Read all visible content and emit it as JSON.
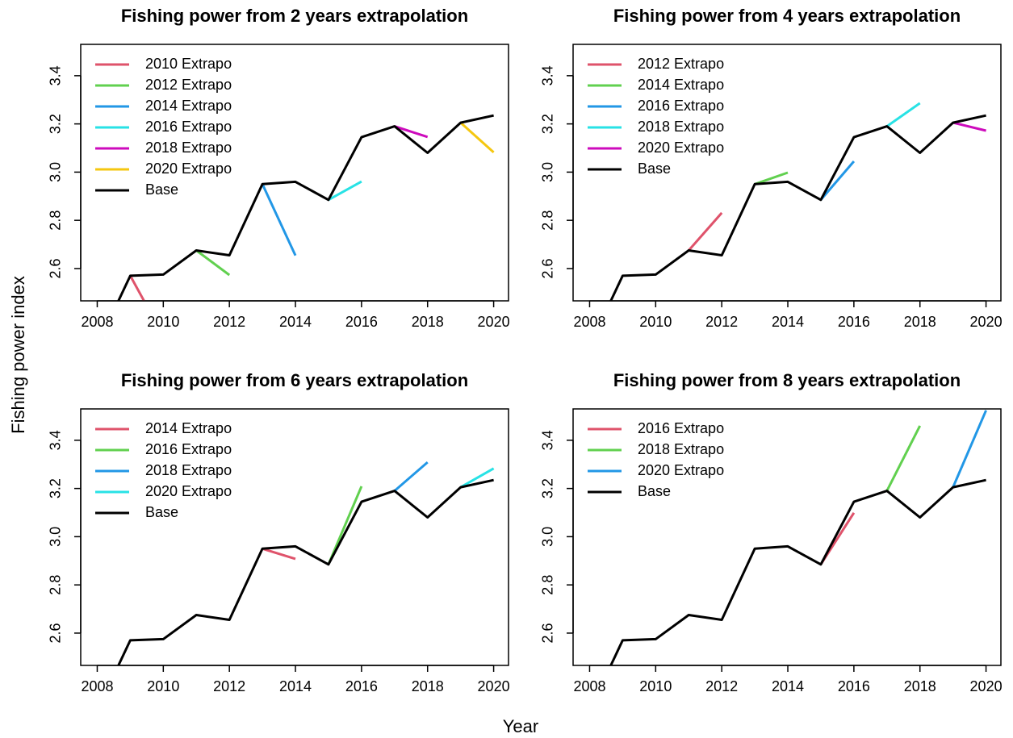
{
  "figure": {
    "ylabel": "Fishing power index",
    "xlabel": "Year"
  },
  "chart_data": [
    {
      "type": "line",
      "title": "Fishing power from 2 years extrapolation",
      "legend": "topleft",
      "xlim": [
        2007.5,
        2020.45
      ],
      "ylim": [
        2.466,
        3.53
      ],
      "xticks": [
        2008,
        2010,
        2012,
        2014,
        2016,
        2018,
        2020
      ],
      "yticks": [
        2.6,
        2.8,
        {
          "value": 3,
          "label": "3.0"
        },
        3.2,
        3.4
      ],
      "series": [
        {
          "name": "2010 Extrapo",
          "color": "#DF536B",
          "x": [
            2009,
            2010
          ],
          "values": [
            2.57,
            2.32
          ]
        },
        {
          "name": "2012 Extrapo",
          "color": "#61D04F",
          "x": [
            2011,
            2012
          ],
          "values": [
            2.675,
            2.573
          ]
        },
        {
          "name": "2014 Extrapo",
          "color": "#2297E6",
          "x": [
            2013,
            2014
          ],
          "values": [
            2.95,
            2.654
          ]
        },
        {
          "name": "2016 Extrapo",
          "color": "#28E2E5",
          "x": [
            2015,
            2016
          ],
          "values": [
            2.885,
            2.961
          ]
        },
        {
          "name": "2018 Extrapo",
          "color": "#CD0BBC",
          "x": [
            2017,
            2018
          ],
          "values": [
            3.19,
            3.146
          ]
        },
        {
          "name": "2020 Extrapo",
          "color": "#F5C710",
          "x": [
            2019,
            2020
          ],
          "values": [
            3.205,
            3.082
          ]
        },
        {
          "name": "Base",
          "color": "#000000",
          "x": [
            2008,
            2009,
            2010,
            2011,
            2012,
            2013,
            2014,
            2015,
            2016,
            2017,
            2018,
            2019,
            2020
          ],
          "values": [
            2.28,
            2.57,
            2.575,
            2.675,
            2.655,
            2.95,
            2.96,
            2.885,
            3.145,
            3.19,
            3.08,
            3.205,
            3.235
          ]
        }
      ]
    },
    {
      "type": "line",
      "title": "Fishing power from 4 years extrapolation",
      "legend": "topleft",
      "xlim": [
        2007.5,
        2020.45
      ],
      "ylim": [
        2.466,
        3.53
      ],
      "xticks": [
        2008,
        2010,
        2012,
        2014,
        2016,
        2018,
        2020
      ],
      "yticks": [
        2.6,
        2.8,
        {
          "value": 3,
          "label": "3.0"
        },
        3.2,
        3.4
      ],
      "series": [
        {
          "name": "2012 Extrapo",
          "color": "#DF536B",
          "x": [
            2011,
            2012
          ],
          "values": [
            2.675,
            2.831
          ]
        },
        {
          "name": "2014 Extrapo",
          "color": "#61D04F",
          "x": [
            2013,
            2014
          ],
          "values": [
            2.95,
            2.998
          ]
        },
        {
          "name": "2016 Extrapo",
          "color": "#2297E6",
          "x": [
            2015,
            2016
          ],
          "values": [
            2.885,
            3.045
          ]
        },
        {
          "name": "2018 Extrapo",
          "color": "#28E2E5",
          "x": [
            2017,
            2018
          ],
          "values": [
            3.19,
            3.286
          ]
        },
        {
          "name": "2020 Extrapo",
          "color": "#CD0BBC",
          "x": [
            2019,
            2020
          ],
          "values": [
            3.205,
            3.172
          ]
        },
        {
          "name": "Base",
          "color": "#000000",
          "x": [
            2008,
            2009,
            2010,
            2011,
            2012,
            2013,
            2014,
            2015,
            2016,
            2017,
            2018,
            2019,
            2020
          ],
          "values": [
            2.28,
            2.57,
            2.575,
            2.675,
            2.655,
            2.95,
            2.96,
            2.885,
            3.145,
            3.19,
            3.08,
            3.205,
            3.235
          ]
        }
      ]
    },
    {
      "type": "line",
      "title": "Fishing power from 6 years extrapolation",
      "legend": "topleft",
      "xlim": [
        2007.5,
        2020.45
      ],
      "ylim": [
        2.466,
        3.53
      ],
      "xticks": [
        2008,
        2010,
        2012,
        2014,
        2016,
        2018,
        2020
      ],
      "yticks": [
        2.6,
        2.8,
        {
          "value": 3,
          "label": "3.0"
        },
        3.2,
        3.4
      ],
      "series": [
        {
          "name": "2014 Extrapo",
          "color": "#DF536B",
          "x": [
            2013,
            2014
          ],
          "values": [
            2.95,
            2.908
          ]
        },
        {
          "name": "2016 Extrapo",
          "color": "#61D04F",
          "x": [
            2015,
            2016
          ],
          "values": [
            2.885,
            3.209
          ]
        },
        {
          "name": "2018 Extrapo",
          "color": "#2297E6",
          "x": [
            2017,
            2018
          ],
          "values": [
            3.19,
            3.309
          ]
        },
        {
          "name": "2020 Extrapo",
          "color": "#28E2E5",
          "x": [
            2019,
            2020
          ],
          "values": [
            3.205,
            3.283
          ]
        },
        {
          "name": "Base",
          "color": "#000000",
          "x": [
            2008,
            2009,
            2010,
            2011,
            2012,
            2013,
            2014,
            2015,
            2016,
            2017,
            2018,
            2019,
            2020
          ],
          "values": [
            2.28,
            2.57,
            2.575,
            2.675,
            2.655,
            2.95,
            2.96,
            2.885,
            3.145,
            3.19,
            3.08,
            3.205,
            3.235
          ]
        }
      ]
    },
    {
      "type": "line",
      "title": "Fishing power from 8 years extrapolation",
      "legend": "topleft",
      "xlim": [
        2007.5,
        2020.45
      ],
      "ylim": [
        2.466,
        3.53
      ],
      "xticks": [
        2008,
        2010,
        2012,
        2014,
        2016,
        2018,
        2020
      ],
      "yticks": [
        2.6,
        2.8,
        {
          "value": 3,
          "label": "3.0"
        },
        3.2,
        3.4
      ],
      "series": [
        {
          "name": "2016 Extrapo",
          "color": "#DF536B",
          "x": [
            2015,
            2016
          ],
          "values": [
            2.885,
            3.099
          ]
        },
        {
          "name": "2018 Extrapo",
          "color": "#61D04F",
          "x": [
            2017,
            2018
          ],
          "values": [
            3.19,
            3.46
          ]
        },
        {
          "name": "2020 Extrapo",
          "color": "#2297E6",
          "x": [
            2019,
            2020
          ],
          "values": [
            3.205,
            3.524
          ]
        },
        {
          "name": "Base",
          "color": "#000000",
          "x": [
            2008,
            2009,
            2010,
            2011,
            2012,
            2013,
            2014,
            2015,
            2016,
            2017,
            2018,
            2019,
            2020
          ],
          "values": [
            2.28,
            2.57,
            2.575,
            2.675,
            2.655,
            2.95,
            2.96,
            2.885,
            3.145,
            3.19,
            3.08,
            3.205,
            3.235
          ]
        }
      ]
    }
  ]
}
